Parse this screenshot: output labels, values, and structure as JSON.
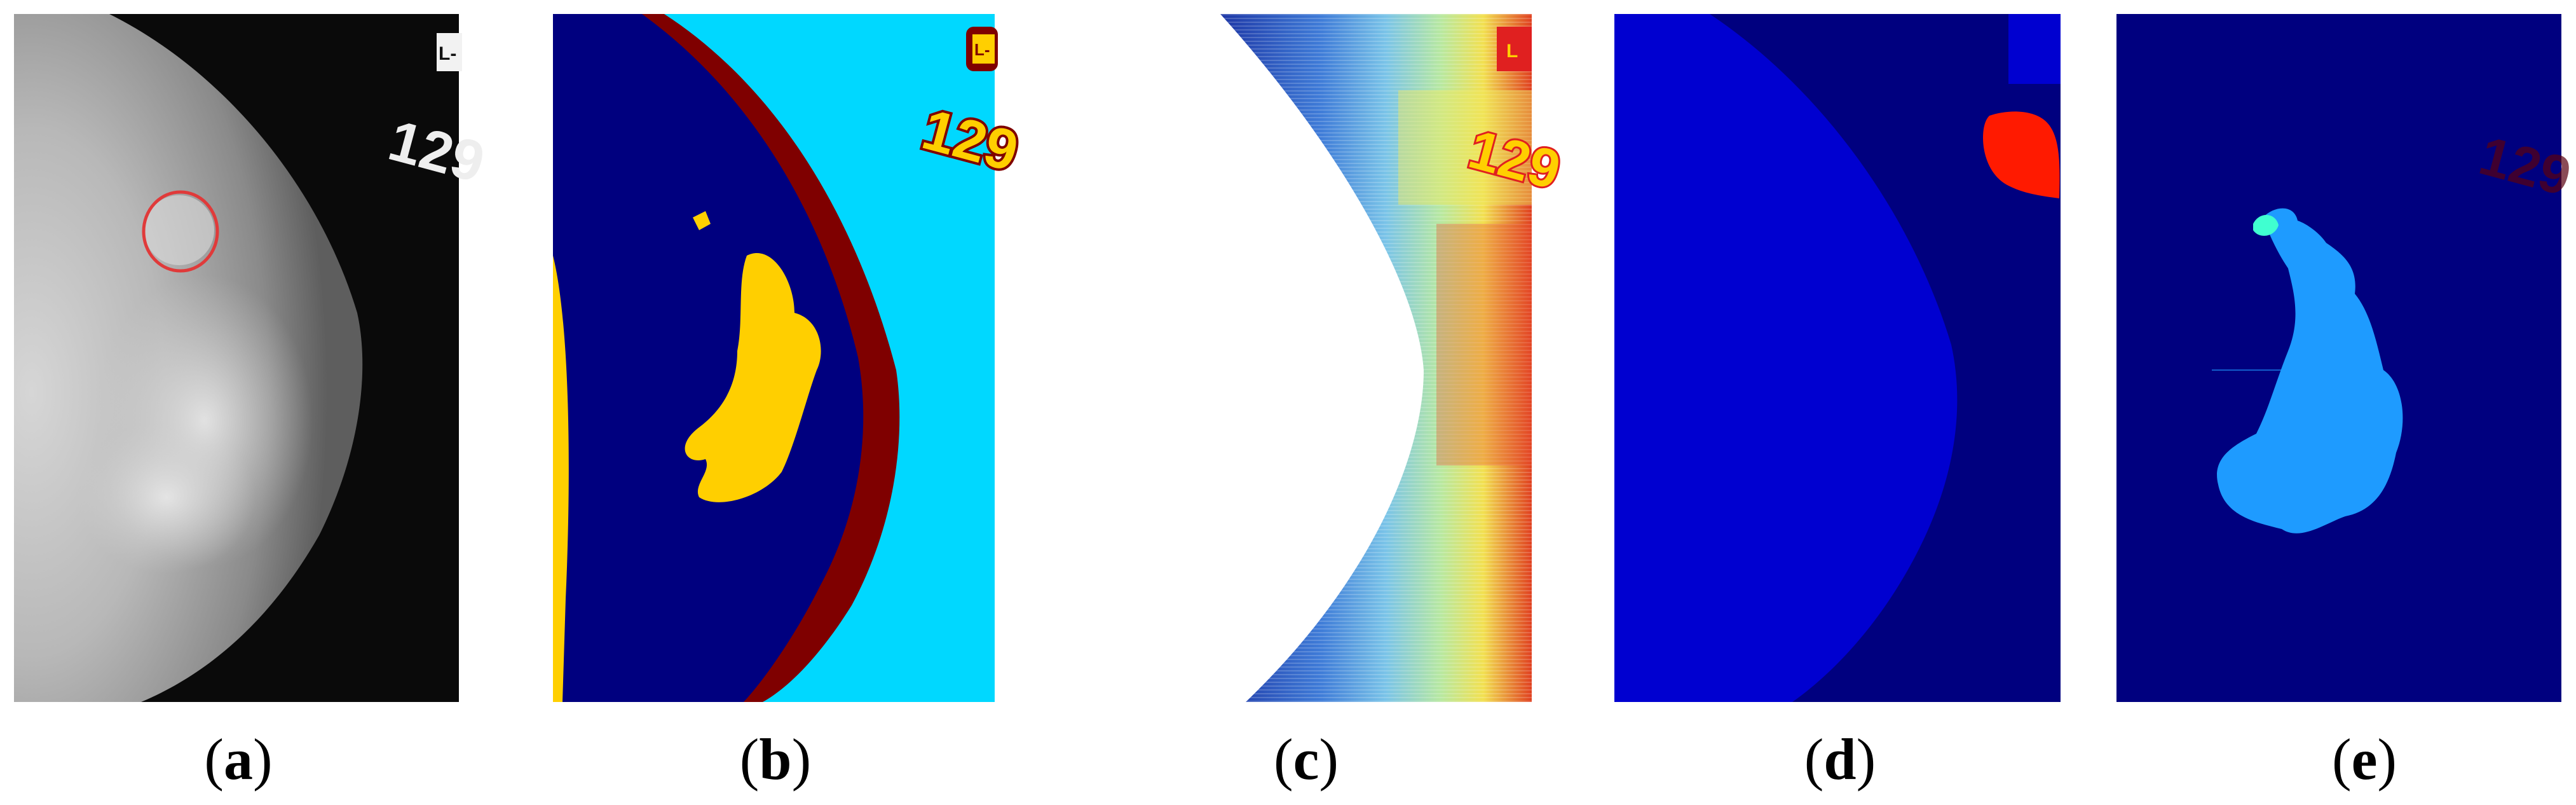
{
  "panels": [
    {
      "id": "a",
      "label": "a",
      "description": "grayscale mammogram with circled region",
      "marker": "L-",
      "number": "129"
    },
    {
      "id": "b",
      "label": "b",
      "description": "segmentation map, jet colormap",
      "marker": "L-",
      "number": "129"
    },
    {
      "id": "c",
      "label": "c",
      "description": "texture / intensity map",
      "marker": "L",
      "number": "129"
    },
    {
      "id": "d",
      "label": "d",
      "description": "breast region mask",
      "marker": "",
      "number": ""
    },
    {
      "id": "e",
      "label": "e",
      "description": "detected lesion region",
      "marker": "",
      "number": "129"
    }
  ],
  "colors": {
    "dark_navy": "#00007f",
    "blue": "#0000d0",
    "cyan": "#00d8ff",
    "yellow": "#ffcf00",
    "maroon": "#7f0000",
    "red": "#ff1a00",
    "light_blue": "#1e9bff",
    "aqua": "#40ffd0",
    "outline_red": "#e03a3a"
  }
}
